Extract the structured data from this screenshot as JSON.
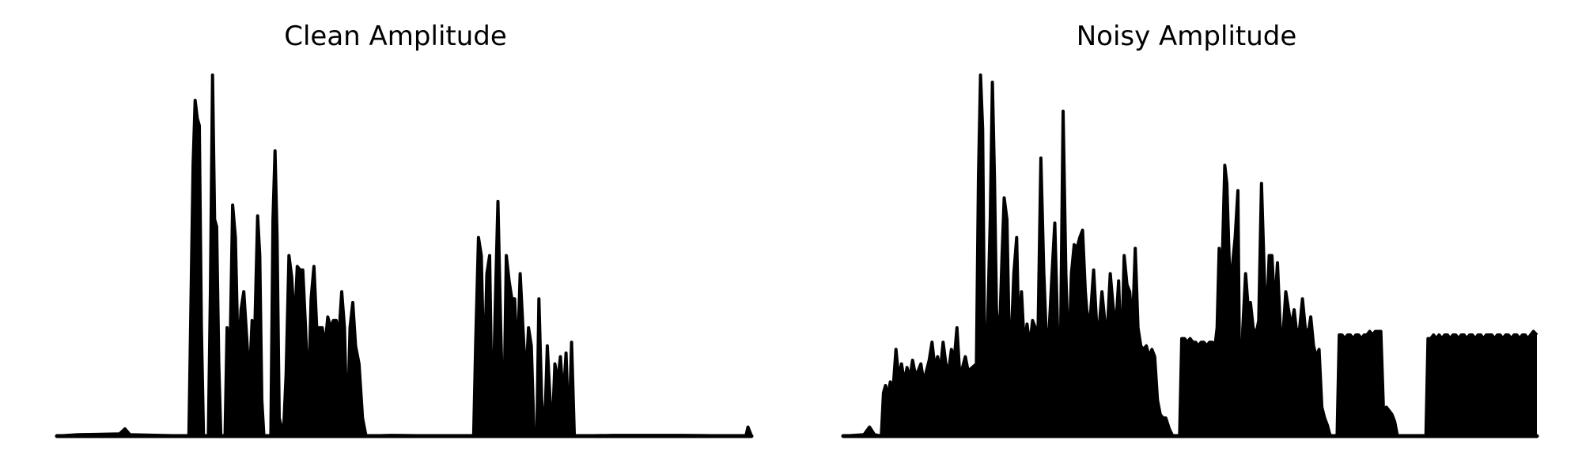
{
  "chart_data": [
    {
      "type": "line",
      "title": "Clean Amplitude",
      "axis_visible": false,
      "grid": false,
      "color": "#000000",
      "x_range": [
        0,
        100
      ],
      "ylim": [
        0,
        1
      ],
      "peaks": [
        [
          0,
          0.0
        ],
        [
          3,
          0.004
        ],
        [
          9,
          0.006
        ],
        [
          9.8,
          0.02
        ],
        [
          10.5,
          0.004
        ],
        [
          19,
          0.0
        ],
        [
          19.3,
          0.38
        ],
        [
          19.6,
          0.75
        ],
        [
          19.9,
          0.93
        ],
        [
          20.2,
          0.88
        ],
        [
          20.5,
          0.86
        ],
        [
          20.8,
          0.3
        ],
        [
          21.1,
          0.0
        ],
        [
          21.8,
          0.0
        ],
        [
          22.1,
          0.4
        ],
        [
          22.4,
          1.0
        ],
        [
          22.7,
          0.6
        ],
        [
          23.0,
          0.58
        ],
        [
          23.3,
          0.2
        ],
        [
          23.6,
          0.0
        ],
        [
          24.2,
          0.0
        ],
        [
          24.5,
          0.3
        ],
        [
          24.9,
          0.2
        ],
        [
          25.3,
          0.64
        ],
        [
          25.7,
          0.55
        ],
        [
          26.1,
          0.2
        ],
        [
          26.5,
          0.35
        ],
        [
          26.9,
          0.4
        ],
        [
          27.3,
          0.28
        ],
        [
          27.7,
          0.15
        ],
        [
          28.1,
          0.32
        ],
        [
          28.5,
          0.3
        ],
        [
          28.9,
          0.61
        ],
        [
          29.2,
          0.5
        ],
        [
          29.5,
          0.1
        ],
        [
          29.8,
          0.0
        ],
        [
          30.8,
          0.0
        ],
        [
          31.1,
          0.6
        ],
        [
          31.4,
          0.79
        ],
        [
          31.7,
          0.55
        ],
        [
          32.0,
          0.05
        ],
        [
          32.6,
          0.0
        ],
        [
          33.0,
          0.17
        ],
        [
          33.4,
          0.5
        ],
        [
          33.8,
          0.44
        ],
        [
          34.2,
          0.3
        ],
        [
          34.6,
          0.47
        ],
        [
          35.0,
          0.46
        ],
        [
          35.4,
          0.46
        ],
        [
          35.8,
          0.3
        ],
        [
          36.2,
          0.1
        ],
        [
          36.6,
          0.38
        ],
        [
          37.0,
          0.47
        ],
        [
          37.4,
          0.3
        ],
        [
          37.8,
          0.3
        ],
        [
          38.2,
          0.3
        ],
        [
          38.6,
          0.25
        ],
        [
          39.0,
          0.33
        ],
        [
          39.4,
          0.3
        ],
        [
          39.8,
          0.32
        ],
        [
          40.2,
          0.32
        ],
        [
          40.6,
          0.28
        ],
        [
          41.0,
          0.4
        ],
        [
          41.4,
          0.3
        ],
        [
          41.8,
          0.0
        ],
        [
          42.2,
          0.3
        ],
        [
          42.6,
          0.37
        ],
        [
          43.0,
          0.25
        ],
        [
          43.5,
          0.2
        ],
        [
          44.0,
          0.05
        ],
        [
          44.5,
          0.0
        ],
        [
          48,
          0.002
        ],
        [
          52,
          0.001
        ],
        [
          60.0,
          0.0
        ],
        [
          60.3,
          0.26
        ],
        [
          60.7,
          0.55
        ],
        [
          61.1,
          0.5
        ],
        [
          61.5,
          0.15
        ],
        [
          61.9,
          0.45
        ],
        [
          62.3,
          0.5
        ],
        [
          62.7,
          0.0
        ],
        [
          63.1,
          0.35
        ],
        [
          63.5,
          0.65
        ],
        [
          63.9,
          0.3
        ],
        [
          64.3,
          0.0
        ],
        [
          64.7,
          0.5
        ],
        [
          65.1,
          0.43
        ],
        [
          65.5,
          0.38
        ],
        [
          65.9,
          0.38
        ],
        [
          66.3,
          0.2
        ],
        [
          66.7,
          0.45
        ],
        [
          67.1,
          0.3
        ],
        [
          67.5,
          0.15
        ],
        [
          67.9,
          0.3
        ],
        [
          68.3,
          0.25
        ],
        [
          68.7,
          0.0
        ],
        [
          69.1,
          0.0
        ],
        [
          69.4,
          0.38
        ],
        [
          69.8,
          0.1
        ],
        [
          70.2,
          0.0
        ],
        [
          70.6,
          0.25
        ],
        [
          71.0,
          0.1
        ],
        [
          71.3,
          0.0
        ],
        [
          71.7,
          0.2
        ],
        [
          72.1,
          0.15
        ],
        [
          72.5,
          0.22
        ],
        [
          72.9,
          0.1
        ],
        [
          73.3,
          0.23
        ],
        [
          73.7,
          0.0
        ],
        [
          74.1,
          0.26
        ],
        [
          74.5,
          0.0
        ],
        [
          80,
          0.002
        ],
        [
          90,
          0.002
        ],
        [
          99.2,
          0.0
        ],
        [
          99.5,
          0.025
        ],
        [
          100,
          0.0
        ]
      ]
    },
    {
      "type": "line",
      "title": "Noisy Amplitude",
      "axis_visible": false,
      "grid": false,
      "color": "#000000",
      "x_range": [
        0,
        100
      ],
      "ylim": [
        0,
        1
      ],
      "peaks": [
        [
          0,
          0.0
        ],
        [
          3,
          0.004
        ],
        [
          3.8,
          0.025
        ],
        [
          4.5,
          0.004
        ],
        [
          5.5,
          0.0
        ],
        [
          5.8,
          0.12
        ],
        [
          6.1,
          0.14
        ],
        [
          6.4,
          0.11
        ],
        [
          6.8,
          0.15
        ],
        [
          7.2,
          0.13
        ],
        [
          7.6,
          0.24
        ],
        [
          8.0,
          0.16
        ],
        [
          8.4,
          0.2
        ],
        [
          8.8,
          0.15
        ],
        [
          9.2,
          0.19
        ],
        [
          9.6,
          0.16
        ],
        [
          10.0,
          0.21
        ],
        [
          10.4,
          0.17
        ],
        [
          10.8,
          0.18
        ],
        [
          11.2,
          0.2
        ],
        [
          11.6,
          0.15
        ],
        [
          12.0,
          0.18
        ],
        [
          12.4,
          0.21
        ],
        [
          12.8,
          0.26
        ],
        [
          13.2,
          0.19
        ],
        [
          13.6,
          0.22
        ],
        [
          14.0,
          0.18
        ],
        [
          14.4,
          0.26
        ],
        [
          14.8,
          0.2
        ],
        [
          15.2,
          0.18
        ],
        [
          15.6,
          0.24
        ],
        [
          16.0,
          0.21
        ],
        [
          16.4,
          0.3
        ],
        [
          16.8,
          0.17
        ],
        [
          17.2,
          0.19
        ],
        [
          17.6,
          0.22
        ],
        [
          18.0,
          0.18
        ],
        [
          19.2,
          0.2
        ],
        [
          19.5,
          0.72
        ],
        [
          19.8,
          1.0
        ],
        [
          20.1,
          0.85
        ],
        [
          20.4,
          0.2
        ],
        [
          20.8,
          0.3
        ],
        [
          21.2,
          0.6
        ],
        [
          21.5,
          0.98
        ],
        [
          21.8,
          0.72
        ],
        [
          22.1,
          0.35
        ],
        [
          22.5,
          0.25
        ],
        [
          22.9,
          0.5
        ],
        [
          23.2,
          0.66
        ],
        [
          23.6,
          0.6
        ],
        [
          23.9,
          0.3
        ],
        [
          24.2,
          0.25
        ],
        [
          24.6,
          0.45
        ],
        [
          25.0,
          0.55
        ],
        [
          25.3,
          0.28
        ],
        [
          25.7,
          0.4
        ],
        [
          26.1,
          0.25
        ],
        [
          26.5,
          0.31
        ],
        [
          26.9,
          0.25
        ],
        [
          27.3,
          0.32
        ],
        [
          27.7,
          0.3
        ],
        [
          28.1,
          0.3
        ],
        [
          28.5,
          0.77
        ],
        [
          28.9,
          0.46
        ],
        [
          29.3,
          0.26
        ],
        [
          29.7,
          0.3
        ],
        [
          30.1,
          0.45
        ],
        [
          30.5,
          0.59
        ],
        [
          30.9,
          0.3
        ],
        [
          31.3,
          0.2
        ],
        [
          31.7,
          0.9
        ],
        [
          32.1,
          0.45
        ],
        [
          32.5,
          0.2
        ],
        [
          32.9,
          0.45
        ],
        [
          33.3,
          0.53
        ],
        [
          33.7,
          0.52
        ],
        [
          34.1,
          0.55
        ],
        [
          34.5,
          0.57
        ],
        [
          34.9,
          0.4
        ],
        [
          35.3,
          0.3
        ],
        [
          35.7,
          0.35
        ],
        [
          36.1,
          0.46
        ],
        [
          36.5,
          0.32
        ],
        [
          36.9,
          0.3
        ],
        [
          37.3,
          0.4
        ],
        [
          37.7,
          0.32
        ],
        [
          38.1,
          0.3
        ],
        [
          38.5,
          0.45
        ],
        [
          38.9,
          0.36
        ],
        [
          39.3,
          0.3
        ],
        [
          39.7,
          0.43
        ],
        [
          40.1,
          0.2
        ],
        [
          40.5,
          0.5
        ],
        [
          40.9,
          0.42
        ],
        [
          41.3,
          0.4
        ],
        [
          41.7,
          0.3
        ],
        [
          42.1,
          0.52
        ],
        [
          42.5,
          0.3
        ],
        [
          42.9,
          0.25
        ],
        [
          43.3,
          0.24
        ],
        [
          43.7,
          0.25
        ],
        [
          44.1,
          0.22
        ],
        [
          44.5,
          0.24
        ],
        [
          44.9,
          0.22
        ],
        [
          45.3,
          0.1
        ],
        [
          45.7,
          0.06
        ],
        [
          46.1,
          0.05
        ],
        [
          46.5,
          0.05
        ],
        [
          47.0,
          0.02
        ],
        [
          47.5,
          0.0
        ],
        [
          48.5,
          0.0
        ],
        [
          48.8,
          0.27
        ],
        [
          49.2,
          0.27
        ],
        [
          49.6,
          0.26
        ],
        [
          50.0,
          0.27
        ],
        [
          50.4,
          0.26
        ],
        [
          50.8,
          0.26
        ],
        [
          51.2,
          0.25
        ],
        [
          51.6,
          0.26
        ],
        [
          52.0,
          0.26
        ],
        [
          52.4,
          0.25
        ],
        [
          52.8,
          0.26
        ],
        [
          53.2,
          0.26
        ],
        [
          53.6,
          0.25
        ],
        [
          53.9,
          0.3
        ],
        [
          54.2,
          0.52
        ],
        [
          54.6,
          0.45
        ],
        [
          55.0,
          0.75
        ],
        [
          55.3,
          0.7
        ],
        [
          55.7,
          0.45
        ],
        [
          56.1,
          0.47
        ],
        [
          56.5,
          0.55
        ],
        [
          56.9,
          0.68
        ],
        [
          57.2,
          0.05
        ],
        [
          57.6,
          0.3
        ],
        [
          58.0,
          0.45
        ],
        [
          58.4,
          0.35
        ],
        [
          58.7,
          0.37
        ],
        [
          59.1,
          0.3
        ],
        [
          59.5,
          0.28
        ],
        [
          59.9,
          0.32
        ],
        [
          60.3,
          0.7
        ],
        [
          60.7,
          0.45
        ],
        [
          61.0,
          0.3
        ],
        [
          61.4,
          0.5
        ],
        [
          61.8,
          0.5
        ],
        [
          62.2,
          0.35
        ],
        [
          62.6,
          0.48
        ],
        [
          63.0,
          0.3
        ],
        [
          63.4,
          0.28
        ],
        [
          63.8,
          0.4
        ],
        [
          64.2,
          0.35
        ],
        [
          64.6,
          0.3
        ],
        [
          65.0,
          0.35
        ],
        [
          65.4,
          0.28
        ],
        [
          65.8,
          0.3
        ],
        [
          66.2,
          0.38
        ],
        [
          66.6,
          0.3
        ],
        [
          67.0,
          0.28
        ],
        [
          67.4,
          0.33
        ],
        [
          67.8,
          0.25
        ],
        [
          68.2,
          0.22
        ],
        [
          68.6,
          0.24
        ],
        [
          69.0,
          0.08
        ],
        [
          69.4,
          0.05
        ],
        [
          69.8,
          0.03
        ],
        [
          70.2,
          0.0
        ],
        [
          71.2,
          0.0
        ],
        [
          71.5,
          0.28
        ],
        [
          71.9,
          0.28
        ],
        [
          72.3,
          0.27
        ],
        [
          72.7,
          0.28
        ],
        [
          73.1,
          0.28
        ],
        [
          73.5,
          0.27
        ],
        [
          73.9,
          0.28
        ],
        [
          74.3,
          0.28
        ],
        [
          74.7,
          0.27
        ],
        [
          75.1,
          0.28
        ],
        [
          75.5,
          0.28
        ],
        [
          75.9,
          0.29
        ],
        [
          76.3,
          0.28
        ],
        [
          76.7,
          0.29
        ],
        [
          77.1,
          0.29
        ],
        [
          77.5,
          0.29
        ],
        [
          77.9,
          0.06
        ],
        [
          78.3,
          0.08
        ],
        [
          78.7,
          0.07
        ],
        [
          79.1,
          0.06
        ],
        [
          79.5,
          0.04
        ],
        [
          79.9,
          0.0
        ],
        [
          84.0,
          0.0
        ],
        [
          84.3,
          0.27
        ],
        [
          84.7,
          0.27
        ],
        [
          85.1,
          0.28
        ],
        [
          85.5,
          0.27
        ],
        [
          85.9,
          0.28
        ],
        [
          86.3,
          0.27
        ],
        [
          86.7,
          0.28
        ],
        [
          87.1,
          0.28
        ],
        [
          87.5,
          0.27
        ],
        [
          87.9,
          0.28
        ],
        [
          88.3,
          0.28
        ],
        [
          88.7,
          0.27
        ],
        [
          89.1,
          0.28
        ],
        [
          89.5,
          0.28
        ],
        [
          89.9,
          0.27
        ],
        [
          90.3,
          0.28
        ],
        [
          90.7,
          0.28
        ],
        [
          91.1,
          0.27
        ],
        [
          91.5,
          0.28
        ],
        [
          91.9,
          0.28
        ],
        [
          92.3,
          0.27
        ],
        [
          92.7,
          0.28
        ],
        [
          93.1,
          0.28
        ],
        [
          93.5,
          0.28
        ],
        [
          93.9,
          0.27
        ],
        [
          94.3,
          0.28
        ],
        [
          94.7,
          0.28
        ],
        [
          95.1,
          0.27
        ],
        [
          95.5,
          0.28
        ],
        [
          95.9,
          0.28
        ],
        [
          96.3,
          0.27
        ],
        [
          96.7,
          0.28
        ],
        [
          97.1,
          0.28
        ],
        [
          97.5,
          0.27
        ],
        [
          97.9,
          0.28
        ],
        [
          98.3,
          0.28
        ],
        [
          98.7,
          0.27
        ],
        [
          99.1,
          0.28
        ],
        [
          99.5,
          0.29
        ],
        [
          100,
          0.28
        ]
      ]
    }
  ]
}
